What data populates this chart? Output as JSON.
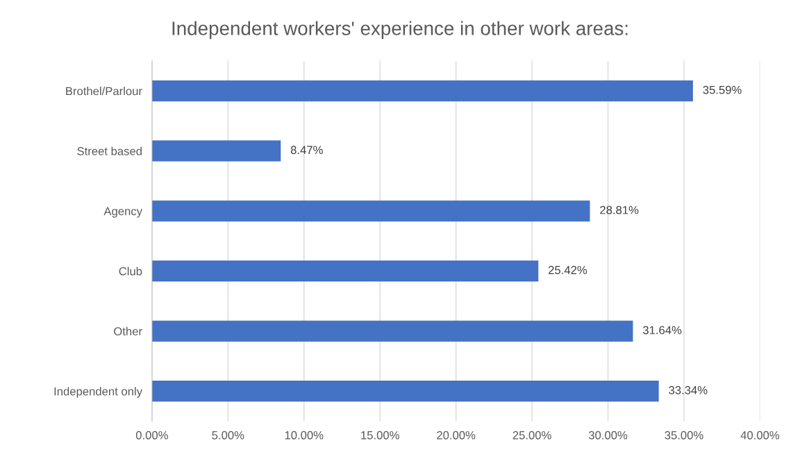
{
  "chart_data": {
    "type": "bar",
    "orientation": "horizontal",
    "title": "Independent workers' experience in other work areas:",
    "categories": [
      "Brothel/Parlour",
      "Street based",
      "Agency",
      "Club",
      "Other",
      "Independent only"
    ],
    "values": [
      35.59,
      8.47,
      28.81,
      25.42,
      31.64,
      33.34
    ],
    "value_labels": [
      "35.59%",
      "8.47%",
      "28.81%",
      "25.42%",
      "31.64%",
      "33.34%"
    ],
    "color": "#4472c4",
    "xlim": [
      0,
      40
    ],
    "xticks": [
      {
        "value": 0,
        "label": "0.00%"
      },
      {
        "value": 5,
        "label": "5.00%"
      },
      {
        "value": 10,
        "label": "10.00%"
      },
      {
        "value": 15,
        "label": "15.00%"
      },
      {
        "value": 20,
        "label": "20.00%"
      },
      {
        "value": 25,
        "label": "25.00%"
      },
      {
        "value": 30,
        "label": "30.00%"
      },
      {
        "value": 35,
        "label": "35.00%"
      },
      {
        "value": 40,
        "label": "40.00%"
      }
    ],
    "grid": "x"
  }
}
